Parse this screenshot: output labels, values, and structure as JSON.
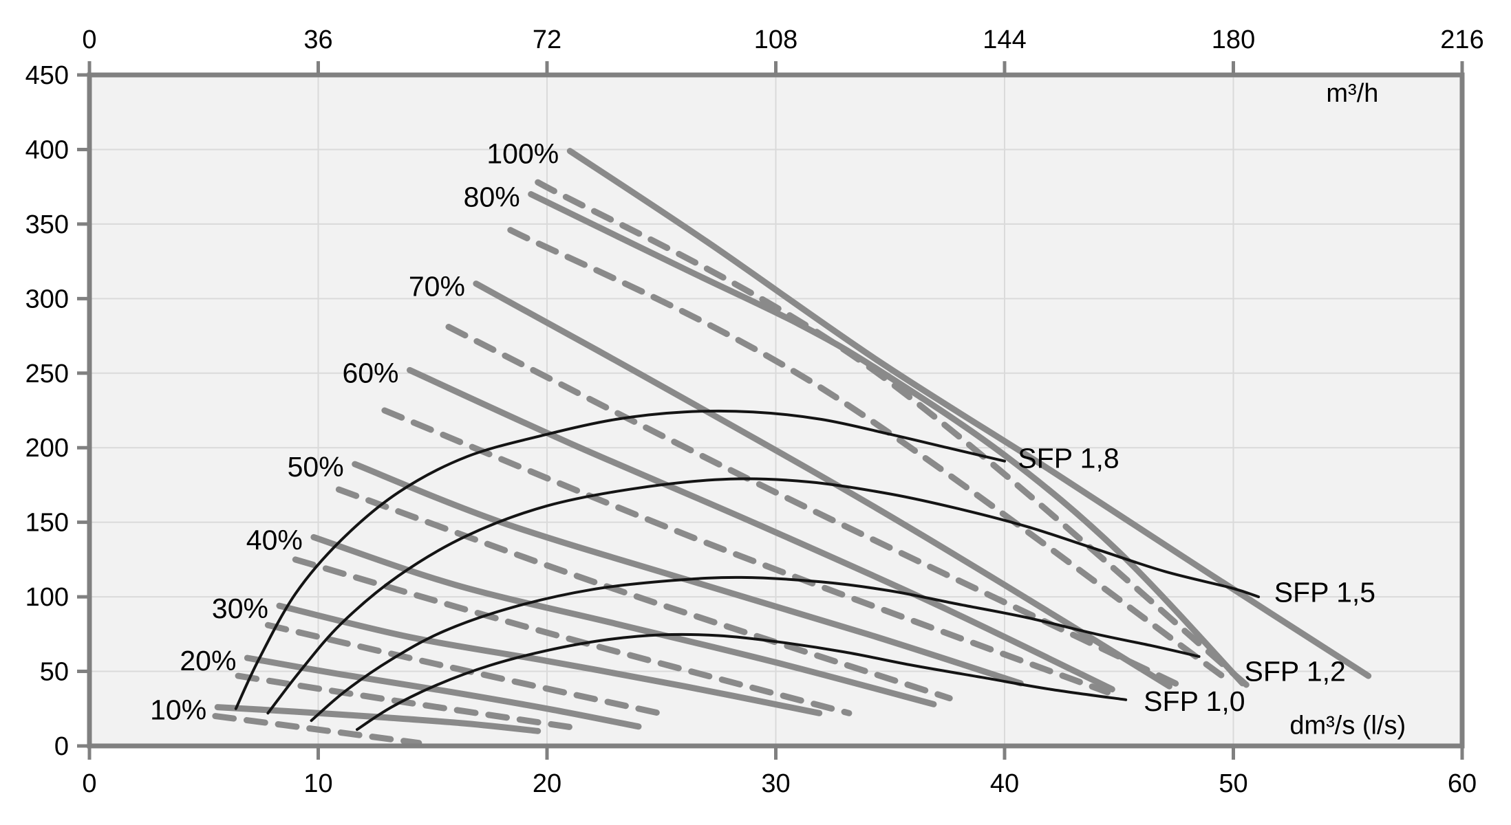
{
  "chart_data": {
    "type": "line",
    "title": "",
    "x_axis_top": {
      "unit": "m³/h",
      "range": [
        0,
        216
      ],
      "ticks": [
        0,
        36,
        72,
        108,
        144,
        180,
        216
      ]
    },
    "x_axis_bottom": {
      "unit": "dm³/s (l/s)",
      "range": [
        0,
        60
      ],
      "ticks": [
        0,
        10,
        20,
        30,
        40,
        50,
        60
      ]
    },
    "y_axis_left": {
      "unit": "",
      "range": [
        0,
        450
      ],
      "ticks": [
        0,
        50,
        100,
        150,
        200,
        250,
        300,
        350,
        400,
        450
      ]
    },
    "grid": true,
    "legend_position": "none",
    "unit_label_top": {
      "text": "m³/h",
      "at": [
        55.2,
        432
      ]
    },
    "unit_label_bottom": {
      "text": "dm³/s (l/s)",
      "at": [
        55.0,
        8
      ]
    },
    "fan_speed_curves_solid": [
      {
        "label": "10%",
        "label_at": [
          5.6,
          26
        ],
        "points": [
          [
            5.6,
            26
          ],
          [
            9,
            23
          ],
          [
            13,
            19
          ],
          [
            16.5,
            15
          ],
          [
            19.6,
            10
          ]
        ]
      },
      {
        "label": "20%",
        "label_at": [
          6.9,
          59
        ],
        "points": [
          [
            6.9,
            59
          ],
          [
            11,
            48
          ],
          [
            15.5,
            37
          ],
          [
            20,
            25
          ],
          [
            24,
            13
          ]
        ]
      },
      {
        "label": "30%",
        "label_at": [
          8.3,
          94
        ],
        "points": [
          [
            8.3,
            94
          ],
          [
            14,
            73
          ],
          [
            20,
            57
          ],
          [
            26,
            40
          ],
          [
            31.9,
            22
          ]
        ]
      },
      {
        "label": "40%",
        "label_at": [
          9.8,
          140
        ],
        "points": [
          [
            9.8,
            140
          ],
          [
            16,
            108
          ],
          [
            23,
            82
          ],
          [
            30,
            56
          ],
          [
            36.9,
            28
          ]
        ]
      },
      {
        "label": "50%",
        "label_at": [
          11.6,
          189
        ],
        "points": [
          [
            11.6,
            189
          ],
          [
            18,
            150
          ],
          [
            26,
            112
          ],
          [
            34,
            75
          ],
          [
            40.7,
            42
          ]
        ]
      },
      {
        "label": "60%",
        "label_at": [
          14.0,
          252
        ],
        "points": [
          [
            14,
            252
          ],
          [
            21,
            203
          ],
          [
            29,
            150
          ],
          [
            37,
            95
          ],
          [
            44.7,
            38
          ]
        ]
      },
      {
        "label": "70%",
        "label_at": [
          16.9,
          310
        ],
        "points": [
          [
            16.9,
            310
          ],
          [
            24,
            250
          ],
          [
            33,
            172
          ],
          [
            40,
            108
          ],
          [
            47.2,
            40
          ]
        ]
      },
      {
        "label": "80%",
        "label_at": [
          19.3,
          370
        ],
        "points": [
          [
            19.3,
            370
          ],
          [
            26,
            320
          ],
          [
            31,
            283
          ],
          [
            34.5,
            252
          ],
          [
            40,
            195
          ],
          [
            45,
            130
          ],
          [
            50.4,
            42
          ]
        ]
      },
      {
        "label": "100%",
        "label_at": [
          21.0,
          399
        ],
        "points": [
          [
            21,
            399
          ],
          [
            27,
            338
          ],
          [
            34.5,
            258
          ],
          [
            42,
            185
          ],
          [
            49,
            115
          ],
          [
            55.9,
            47
          ]
        ]
      }
    ],
    "fan_speed_curves_dashed": [
      {
        "speed": "10%",
        "points": [
          [
            5.5,
            20
          ],
          [
            9.5,
            12
          ],
          [
            14.4,
            2
          ]
        ]
      },
      {
        "speed": "20%",
        "points": [
          [
            6.5,
            47
          ],
          [
            13.5,
            30
          ],
          [
            21.3,
            12
          ]
        ]
      },
      {
        "speed": "30%",
        "points": [
          [
            7.8,
            81
          ],
          [
            16,
            52
          ],
          [
            25.2,
            21
          ]
        ]
      },
      {
        "speed": "40%",
        "points": [
          [
            9,
            125
          ],
          [
            20,
            76
          ],
          [
            33.2,
            22
          ]
        ]
      },
      {
        "speed": "50%",
        "points": [
          [
            10.9,
            172
          ],
          [
            23,
            105
          ],
          [
            37.6,
            32
          ]
        ]
      },
      {
        "speed": "60%",
        "points": [
          [
            12.9,
            225
          ],
          [
            27.5,
            133
          ],
          [
            44.5,
            36
          ]
        ]
      },
      {
        "speed": "70%",
        "points": [
          [
            15.7,
            281
          ],
          [
            30,
            170
          ],
          [
            47.6,
            41
          ]
        ]
      },
      {
        "speed": "80%",
        "points": [
          [
            18.4,
            346
          ],
          [
            32,
            240
          ],
          [
            49.6,
            46
          ]
        ]
      },
      {
        "speed": "100%",
        "points": [
          [
            19.6,
            378
          ],
          [
            34,
            255
          ],
          [
            50.8,
            38
          ]
        ]
      }
    ],
    "sfp_curves": [
      {
        "label": "SFP 1,8",
        "label_at": [
          40.4,
          193
        ],
        "points": [
          [
            6.4,
            25
          ],
          [
            7.4,
            58
          ],
          [
            9,
            102
          ],
          [
            11,
            138
          ],
          [
            13.5,
            170
          ],
          [
            16.5,
            194
          ],
          [
            20,
            209
          ],
          [
            23,
            219
          ],
          [
            26,
            224
          ],
          [
            29,
            224
          ],
          [
            32,
            219
          ],
          [
            35,
            209
          ],
          [
            37.5,
            200
          ],
          [
            40,
            191
          ]
        ]
      },
      {
        "label": "SFP 1,5",
        "label_at": [
          51.6,
          103
        ],
        "points": [
          [
            7.8,
            22
          ],
          [
            9.2,
            50
          ],
          [
            11,
            82
          ],
          [
            13.5,
            114
          ],
          [
            16.5,
            141
          ],
          [
            20,
            161
          ],
          [
            24,
            173
          ],
          [
            28,
            179
          ],
          [
            31.5,
            177
          ],
          [
            35,
            169
          ],
          [
            38,
            159
          ],
          [
            41,
            147
          ],
          [
            44,
            132
          ],
          [
            47,
            117
          ],
          [
            49.9,
            106
          ],
          [
            51.1,
            100
          ]
        ]
      },
      {
        "label": "SFP 1,2",
        "label_at": [
          50.3,
          50
        ],
        "points": [
          [
            9.7,
            17
          ],
          [
            11.2,
            37
          ],
          [
            13.2,
            58
          ],
          [
            15.5,
            77
          ],
          [
            18.5,
            93
          ],
          [
            22,
            105
          ],
          [
            25.5,
            111
          ],
          [
            28.5,
            113
          ],
          [
            32,
            110
          ],
          [
            35,
            104
          ],
          [
            38,
            95
          ],
          [
            41,
            86
          ],
          [
            44,
            75
          ],
          [
            46.5,
            67
          ],
          [
            48.5,
            60
          ]
        ]
      },
      {
        "label": "SFP 1,0",
        "label_at": [
          45.9,
          30
        ],
        "points": [
          [
            11.7,
            11
          ],
          [
            13.2,
            26
          ],
          [
            15.2,
            41
          ],
          [
            17.5,
            54
          ],
          [
            20,
            64
          ],
          [
            22.5,
            71
          ],
          [
            25,
            74.5
          ],
          [
            27.5,
            74
          ],
          [
            30,
            70
          ],
          [
            33,
            63
          ],
          [
            36,
            54
          ],
          [
            39,
            46
          ],
          [
            42,
            38
          ],
          [
            45.3,
            31
          ]
        ]
      }
    ],
    "colors": {
      "plot_background": "#f2f2f2",
      "page_background": "#ffffff",
      "grid": "#dadada",
      "spine": "#808080",
      "fan_curve_gray": "#8a8a8a",
      "sfp_black": "#141414",
      "text": "#000000"
    }
  }
}
